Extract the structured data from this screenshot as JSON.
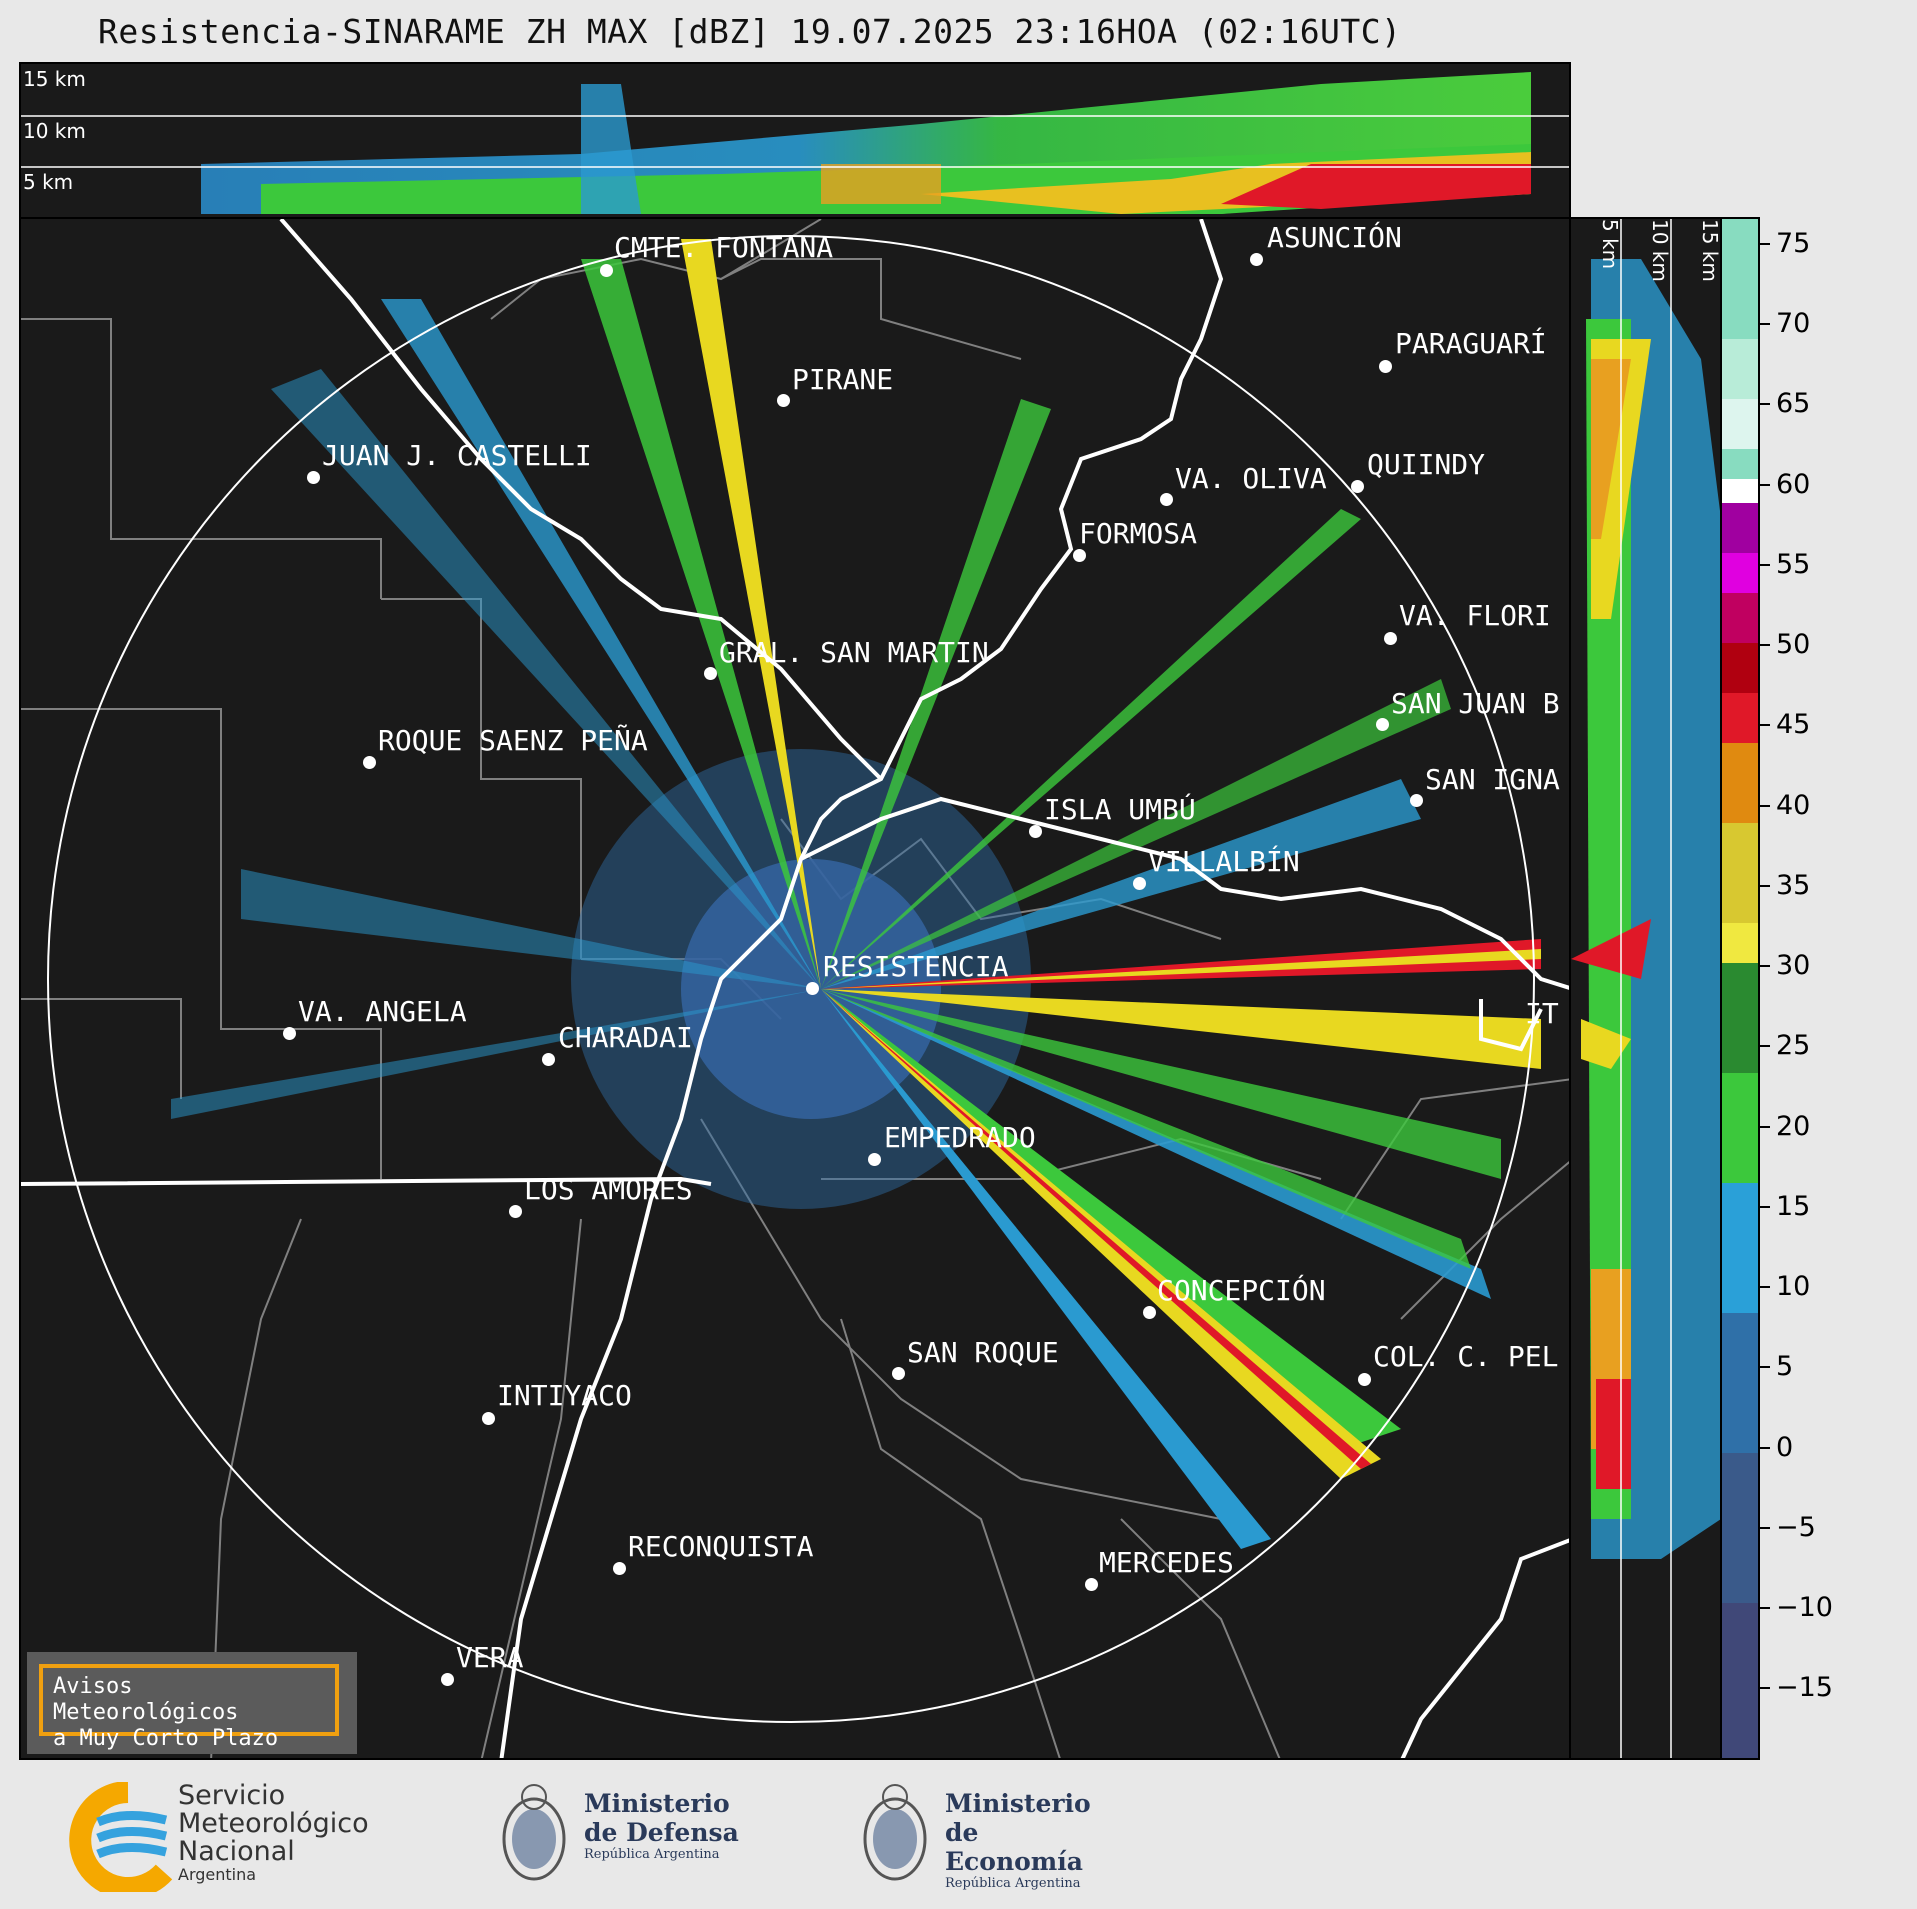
{
  "title": "Resistencia-SINARAME ZH MAX [dBZ] 19.07.2025 23:16HOA (02:16UTC)",
  "top_panel": {
    "height_labels": [
      "15 km",
      "10 km",
      "5 km"
    ]
  },
  "side_panel": {
    "height_labels": [
      "5 km",
      "10 km",
      "15 km"
    ]
  },
  "cities": [
    {
      "name": "CMTE. FONTANA"
    },
    {
      "name": "ASUNCIÓN"
    },
    {
      "name": "PARAGUARÍ"
    },
    {
      "name": "PIRANE"
    },
    {
      "name": "JUAN J. CASTELLI"
    },
    {
      "name": "VA. OLIVA"
    },
    {
      "name": "QUIINDY"
    },
    {
      "name": "FORMOSA"
    },
    {
      "name": "VA. FLORI"
    },
    {
      "name": "GRAL. SAN MARTIN"
    },
    {
      "name": "SAN JUAN B"
    },
    {
      "name": "ROQUE SAENZ PEÑA"
    },
    {
      "name": "SAN IGNA"
    },
    {
      "name": "ISLA UMBÚ"
    },
    {
      "name": "VILLALBÍN"
    },
    {
      "name": "RESISTENCIA"
    },
    {
      "name": "VA. ANGELA"
    },
    {
      "name": "CHARADAI"
    },
    {
      "name": "IT"
    },
    {
      "name": "EMPEDRADO"
    },
    {
      "name": "LOS AMORES"
    },
    {
      "name": "CONCEPCIÓN"
    },
    {
      "name": "COL. C. PEL"
    },
    {
      "name": "SAN ROQUE"
    },
    {
      "name": "INTIYACO"
    },
    {
      "name": "RECONQUISTA"
    },
    {
      "name": "MERCEDES"
    },
    {
      "name": "VERA"
    }
  ],
  "colorbar": {
    "unit": "dBZ",
    "ticks": [
      "75",
      "70",
      "65",
      "60",
      "55",
      "50",
      "45",
      "40",
      "35",
      "30",
      "25",
      "20",
      "15",
      "10",
      "5",
      "0",
      "−5",
      "−10",
      "−15"
    ]
  },
  "warning_box": {
    "line1": "Avisos Meteorológicos",
    "line2": "a Muy Corto Plazo"
  },
  "logos": {
    "smn_line1": "Servicio",
    "smn_line2": "Meteorológico",
    "smn_line3": "Nacional",
    "smn_line4": "Argentina",
    "defensa_line1": "Ministerio",
    "defensa_line2": "de Defensa",
    "defensa_line3": "República Argentina",
    "economia_line1": "Ministerio",
    "economia_line2": "de Economía",
    "economia_line3": "República Argentina"
  }
}
